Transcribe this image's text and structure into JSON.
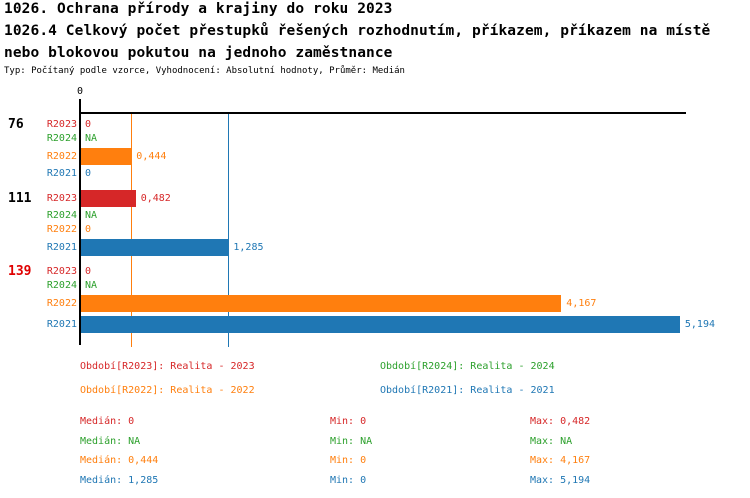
{
  "chart_data": {
    "type": "bar",
    "orientation": "horizontal",
    "title": "1026. Ochrana přírody a krajiny do roku 2023",
    "subtitle_line1": "1026.4 Celkový počet přestupků řešených rozhodnutím, příkazem, příkazem na místě",
    "subtitle_line2": "nebo blokovou pokutou na jednoho zaměstnance",
    "meta": "Typ: Počítaný podle vzorce, Vyhodnocení: Absolutní hodnoty, Průměr: Medián",
    "categories": [
      "76",
      "111",
      "139"
    ],
    "category_colors": [
      "#000000",
      "#000000",
      "#e00000"
    ],
    "xlim": [
      0,
      5.25
    ],
    "x_axis": {
      "tick_labels": [
        "0"
      ]
    },
    "series": [
      {
        "name": "R2023",
        "color": "#d62728",
        "values": [
          0,
          0.482,
          0
        ],
        "display": [
          "0",
          "0,482",
          "0"
        ]
      },
      {
        "name": "R2024",
        "color": "#2ca02c",
        "values": [
          null,
          null,
          null
        ],
        "display": [
          "NA",
          "NA",
          "NA"
        ]
      },
      {
        "name": "R2022",
        "color": "#ff7f0e",
        "values": [
          0.444,
          0,
          4.167
        ],
        "display": [
          "0,444",
          "0",
          "4,167"
        ]
      },
      {
        "name": "R2021",
        "color": "#1f77b4",
        "values": [
          0,
          1.285,
          5.194
        ],
        "display": [
          "0",
          "1,285",
          "5,194"
        ]
      }
    ],
    "median_lines": [
      {
        "series": "R2022",
        "value": 0.444,
        "color": "#ff7f0e"
      },
      {
        "series": "R2021",
        "value": 1.285,
        "color": "#1f77b4"
      }
    ],
    "legend": [
      {
        "series": "R2023",
        "text": "Období[R2023]: Realita - 2023",
        "color": "#d62728"
      },
      {
        "series": "R2024",
        "text": "Období[R2024]: Realita - 2024",
        "color": "#2ca02c"
      },
      {
        "series": "R2022",
        "text": "Období[R2022]: Realita - 2022",
        "color": "#ff7f0e"
      },
      {
        "series": "R2021",
        "text": "Období[R2021]: Realita - 2021",
        "color": "#1f77b4"
      }
    ]
  },
  "stats": [
    {
      "series": "R2023",
      "color": "#d62728",
      "median": "Medián: 0",
      "min": "Min: 0",
      "max": "Max: 0,482"
    },
    {
      "series": "R2024",
      "color": "#2ca02c",
      "median": "Medián: NA",
      "min": "Min: NA",
      "max": "Max: NA"
    },
    {
      "series": "R2022",
      "color": "#ff7f0e",
      "median": "Medián: 0,444",
      "min": "Min: 0",
      "max": "Max: 4,167"
    },
    {
      "series": "R2021",
      "color": "#1f77b4",
      "median": "Medián: 1,285",
      "min": "Min: 0",
      "max": "Max: 5,194"
    }
  ]
}
